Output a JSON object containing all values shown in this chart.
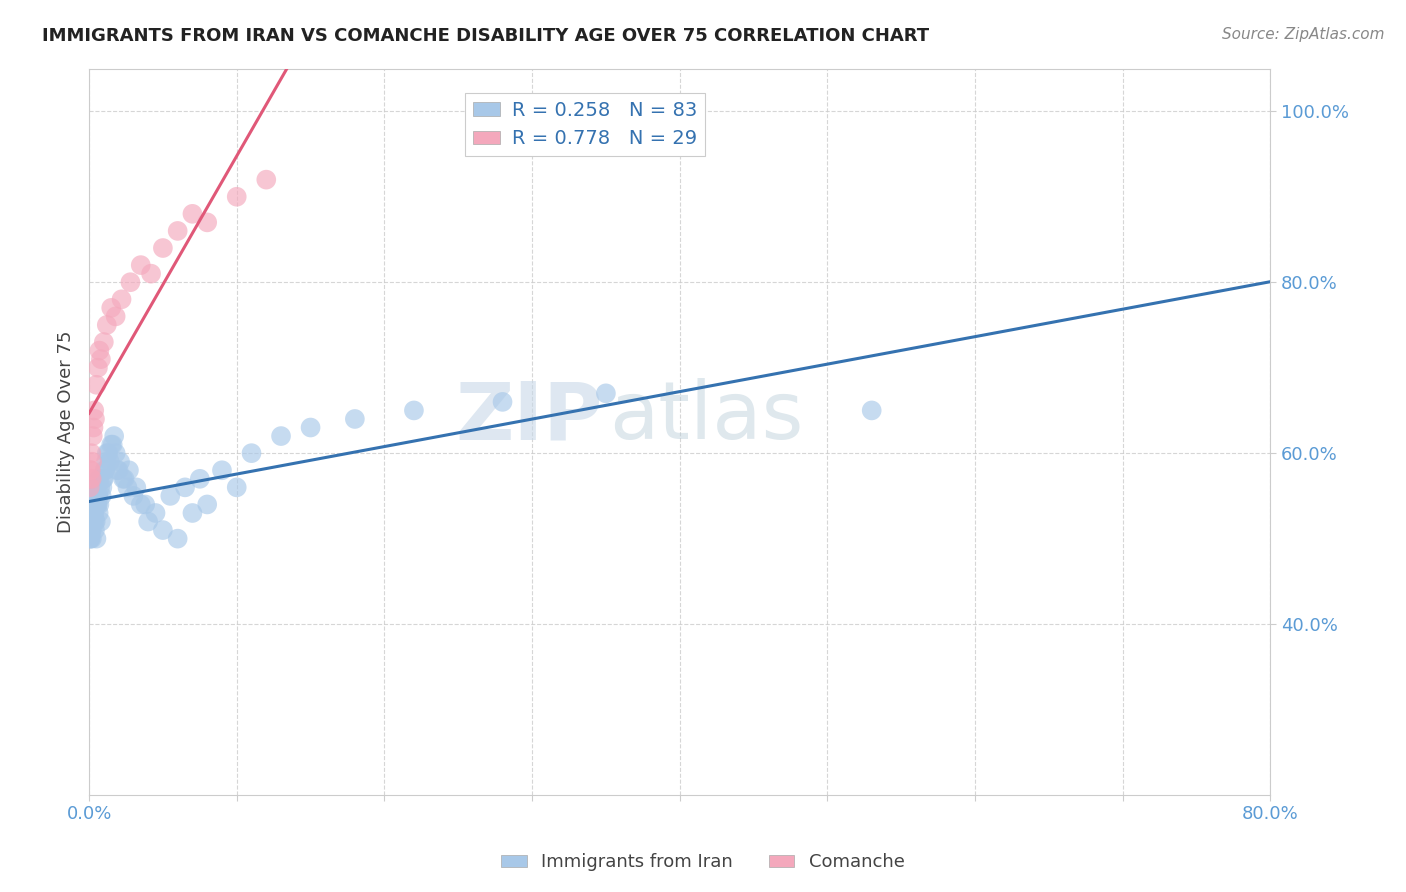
{
  "title": "IMMIGRANTS FROM IRAN VS COMANCHE DISABILITY AGE OVER 75 CORRELATION CHART",
  "source": "Source: ZipAtlas.com",
  "ylabel": "Disability Age Over 75",
  "legend_labels": [
    "Immigrants from Iran",
    "Comanche"
  ],
  "legend_R": [
    0.258,
    0.778
  ],
  "legend_N": [
    83,
    29
  ],
  "blue_color": "#a8c8e8",
  "pink_color": "#f4a8bc",
  "blue_line_color": "#3572b0",
  "pink_line_color": "#e05878",
  "watermark_zip": "ZIP",
  "watermark_atlas": "atlas",
  "xmin": 0.0,
  "xmax": 80.0,
  "ymin": 20.0,
  "ymax": 105.0,
  "yticks": [
    40,
    60,
    80,
    100
  ],
  "ytick_labels": [
    "40.0%",
    "60.0%",
    "80.0%",
    "100.0%"
  ],
  "blue_x": [
    0.05,
    0.08,
    0.1,
    0.12,
    0.15,
    0.18,
    0.2,
    0.22,
    0.25,
    0.28,
    0.3,
    0.35,
    0.4,
    0.45,
    0.5,
    0.55,
    0.6,
    0.65,
    0.7,
    0.8,
    0.9,
    1.0,
    1.1,
    1.2,
    1.4,
    1.6,
    1.8,
    2.0,
    2.3,
    2.6,
    3.0,
    3.5,
    4.0,
    5.0,
    6.0,
    7.0,
    8.0,
    10.0,
    53.0,
    0.06,
    0.07,
    0.09,
    0.11,
    0.13,
    0.16,
    0.19,
    0.21,
    0.24,
    0.27,
    0.32,
    0.38,
    0.42,
    0.48,
    0.52,
    0.58,
    0.63,
    0.68,
    0.75,
    0.85,
    0.95,
    1.05,
    1.15,
    1.3,
    1.5,
    1.7,
    1.9,
    2.1,
    2.4,
    2.7,
    3.2,
    3.8,
    4.5,
    5.5,
    6.5,
    7.5,
    9.0,
    11.0,
    13.0,
    15.0,
    18.0,
    22.0,
    28.0,
    35.0
  ],
  "blue_y": [
    51,
    52,
    50,
    53,
    54,
    51,
    52,
    53,
    54,
    55,
    52,
    53,
    51,
    52,
    50,
    54,
    55,
    53,
    54,
    52,
    56,
    57,
    58,
    60,
    59,
    61,
    60,
    58,
    57,
    56,
    55,
    54,
    52,
    51,
    50,
    53,
    54,
    56,
    65,
    51,
    50,
    52,
    53,
    51,
    52,
    50,
    53,
    54,
    55,
    53,
    52,
    54,
    55,
    56,
    54,
    55,
    57,
    56,
    55,
    57,
    58,
    59,
    60,
    61,
    62,
    58,
    59,
    57,
    58,
    56,
    54,
    53,
    55,
    56,
    57,
    58,
    60,
    62,
    63,
    64,
    65,
    66,
    67
  ],
  "pink_x": [
    0.05,
    0.08,
    0.1,
    0.15,
    0.2,
    0.25,
    0.3,
    0.35,
    0.4,
    0.5,
    0.6,
    0.7,
    0.8,
    1.0,
    1.2,
    1.5,
    1.8,
    2.2,
    2.8,
    3.5,
    4.2,
    5.0,
    6.0,
    7.0,
    8.0,
    10.0,
    12.0,
    0.12,
    0.18
  ],
  "pink_y": [
    56,
    58,
    57,
    60,
    59,
    62,
    63,
    65,
    64,
    68,
    70,
    72,
    71,
    73,
    75,
    77,
    76,
    78,
    80,
    82,
    81,
    84,
    86,
    88,
    87,
    90,
    92,
    58,
    57
  ]
}
